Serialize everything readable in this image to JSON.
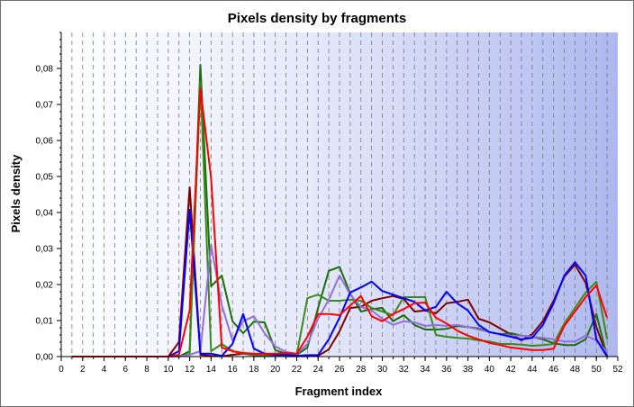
{
  "chart_data": {
    "type": "line",
    "title": "Pixels density by fragments",
    "xlabel": "Fragment index",
    "ylabel": "Pixels density",
    "xlim": [
      0,
      52
    ],
    "ylim": [
      0,
      0.09
    ],
    "x_ticks": [
      "0",
      "2",
      "4",
      "6",
      "8",
      "10",
      "12",
      "14",
      "16",
      "18",
      "20",
      "22",
      "24",
      "26",
      "28",
      "30",
      "32",
      "34",
      "36",
      "38",
      "40",
      "42",
      "44",
      "46",
      "48",
      "50",
      "52"
    ],
    "y_ticks": [
      "0,00",
      "0,01",
      "0,02",
      "0,03",
      "0,04",
      "0,05",
      "0,06",
      "0,07",
      "0,08"
    ],
    "grid": "vertical dashed lines at each integer fragment",
    "legend": "none",
    "background": "gradient white to light blue",
    "x": [
      1,
      2,
      3,
      4,
      5,
      6,
      7,
      8,
      9,
      10,
      11,
      12,
      13,
      14,
      15,
      16,
      17,
      18,
      19,
      20,
      21,
      22,
      23,
      24,
      25,
      26,
      27,
      28,
      29,
      30,
      31,
      32,
      33,
      34,
      35,
      36,
      37,
      38,
      39,
      40,
      41,
      42,
      43,
      44,
      45,
      46,
      47,
      48,
      49,
      50,
      51
    ],
    "series": [
      {
        "color": "#800000",
        "values": [
          0,
          0,
          0,
          0,
          0,
          0,
          0,
          0,
          0,
          0,
          0.004,
          0.047,
          0.0005,
          0.0002,
          0.0001,
          0.0005,
          0.0008,
          0.0004,
          0.0002,
          0.0002,
          0.0001,
          0.0001,
          0.0001,
          0.0002,
          0.002,
          0.007,
          0.0135,
          0.0138,
          0.0155,
          0.0162,
          0.0168,
          0.016,
          0.0125,
          0.0128,
          0.012,
          0.0148,
          0.0152,
          0.0158,
          0.0105,
          0.0095,
          0.0078,
          0.0062,
          0.0045,
          0.0062,
          0.0098,
          0.0155,
          0.0222,
          0.0255,
          0.0205,
          0.0082,
          0
        ]
      },
      {
        "color": "#1b6e0a",
        "values": [
          0,
          0,
          0,
          0,
          0,
          0,
          0,
          0,
          0,
          0,
          0,
          0.0015,
          0.081,
          0.0195,
          0.0225,
          0.0098,
          0.0065,
          0.0097,
          0.0095,
          0.0018,
          0.0008,
          0.0005,
          0.0025,
          0.0135,
          0.0238,
          0.0249,
          0.0175,
          0.0125,
          0.0132,
          0.0135,
          0.0098,
          0.0115,
          0.0088,
          0.0075,
          0.0075,
          0.0077,
          0.0085,
          0.0082,
          0.0078,
          0.0068,
          0.0062,
          0.0065,
          0.0058,
          0.0055,
          0.0048,
          0.0037,
          0.0032,
          0.0032,
          0.0048,
          0.0118,
          0
        ]
      },
      {
        "color": "#3a8a1a",
        "values": [
          0,
          0,
          0,
          0,
          0,
          0,
          0,
          0,
          0,
          0,
          0,
          0.0008,
          0.0762,
          0.0015,
          0.0035,
          0.0015,
          0.0008,
          0.0005,
          0.0004,
          0.0004,
          0.0004,
          0.0005,
          0.0162,
          0.0172,
          0.0155,
          0.0155,
          0.0158,
          0.0155,
          0.0135,
          0.0125,
          0.0115,
          0.0165,
          0.0165,
          0.0165,
          0.006,
          0.0055,
          0.0052,
          0.005,
          0.0045,
          0.0042,
          0.0035,
          0.0035,
          0.0033,
          0.003,
          0.0032,
          0.0035,
          0.0092,
          0.0135,
          0.0178,
          0.0208,
          0.0048
        ]
      },
      {
        "color": "#9370db",
        "values": [
          0,
          0,
          0,
          0,
          0,
          0,
          0,
          0,
          0,
          0,
          0,
          0.0005,
          0.0015,
          0.031,
          0.0142,
          0.0045,
          0.0098,
          0.0112,
          0.0065,
          0.0028,
          0.0013,
          0.0008,
          0.0035,
          0.0105,
          0.0158,
          0.0225,
          0.0172,
          0.0138,
          0.0128,
          0.0105,
          0.0088,
          0.0098,
          0.0095,
          0.0085,
          0.0088,
          0.0085,
          0.0088,
          0.0082,
          0.0075,
          0.0068,
          0.0062,
          0.0058,
          0.0058,
          0.0055,
          0.0052,
          0.0048,
          0.0042,
          0.0042,
          0.0058,
          0.0045,
          0.0012
        ]
      },
      {
        "color": "#0000ff",
        "values": [
          0,
          0,
          0,
          0,
          0,
          0,
          0,
          0,
          0,
          0,
          0.0015,
          0.0408,
          0.0008,
          0.0008,
          0.0002,
          0.0035,
          0.0118,
          0.0022,
          0.0008,
          0.0005,
          0.0005,
          0.0002,
          0.0004,
          0.0004,
          0.0048,
          0.0108,
          0.0178,
          0.0192,
          0.0208,
          0.0182,
          0.0172,
          0.0162,
          0.0152,
          0.0128,
          0.0138,
          0.018,
          0.0148,
          0.0128,
          0.0088,
          0.0068,
          0.0062,
          0.0055,
          0.0048,
          0.0052,
          0.0088,
          0.0148,
          0.0225,
          0.0262,
          0.0225,
          0.0048,
          0
        ]
      },
      {
        "color": "#ff0000",
        "values": [
          0,
          0,
          0,
          0,
          0,
          0,
          0,
          0,
          0,
          0,
          0.0005,
          0.0128,
          0.0745,
          0.0495,
          0.0025,
          0.0015,
          0.001,
          0.0008,
          0.0008,
          0.0008,
          0.001,
          0.0008,
          0.0055,
          0.0118,
          0.0118,
          0.0115,
          0.0142,
          0.0168,
          0.0112,
          0.0098,
          0.0118,
          0.0132,
          0.0148,
          0.015,
          0.0108,
          0.0092,
          0.0072,
          0.0058,
          0.0048,
          0.0038,
          0.0032,
          0.0025,
          0.0022,
          0.0018,
          0.0018,
          0.0022,
          0.0085,
          0.0125,
          0.0165,
          0.0198,
          0.0108
        ]
      }
    ]
  }
}
